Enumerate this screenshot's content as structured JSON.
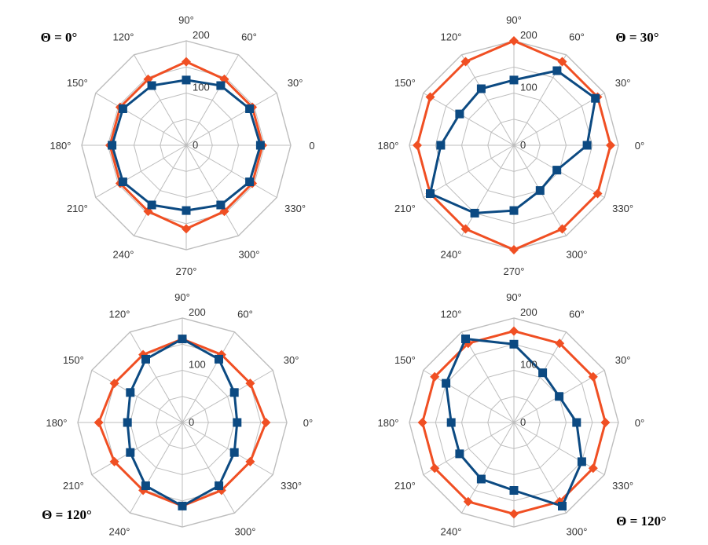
{
  "colors": {
    "outer": "#f04f23",
    "inner": "#0c4a82",
    "grid": "#bdbdbd"
  },
  "chart_data": [
    {
      "type": "radar",
      "title": "Θ = 0°",
      "angle_labels": [
        "90°",
        "120°",
        "150°",
        "180°",
        "210°",
        "240°",
        "270°",
        "300°",
        "330°",
        "0",
        "30°",
        "60°"
      ],
      "radial_labels": [
        "0",
        "100",
        "200"
      ],
      "rlim": [
        0,
        200
      ],
      "series": [
        {
          "marker": "diamond",
          "values": [
            160,
            146,
            146,
            146,
            146,
            146,
            160,
            146,
            146,
            146,
            146,
            146
          ]
        },
        {
          "marker": "square",
          "values": [
            125,
            132,
            140,
            142,
            140,
            132,
            125,
            132,
            140,
            142,
            140,
            132
          ]
        }
      ]
    },
    {
      "type": "radar",
      "title": "Θ = 30°",
      "angle_labels": [
        "90°",
        "120°",
        "150°",
        "180°",
        "210°",
        "240°",
        "270°",
        "300°",
        "330°",
        "0°",
        "30°",
        "60°"
      ],
      "radial_labels": [
        "0",
        "100",
        "200"
      ],
      "rlim": [
        0,
        200
      ],
      "series": [
        {
          "marker": "diamond",
          "values": [
            200,
            185,
            185,
            185,
            185,
            185,
            200,
            185,
            185,
            185,
            185,
            185
          ]
        },
        {
          "marker": "square",
          "values": [
            125,
            125,
            120,
            140,
            185,
            150,
            125,
            100,
            95,
            140,
            180,
            165
          ]
        }
      ]
    },
    {
      "type": "radar",
      "title": "Θ = 120°",
      "angle_labels": [
        "90°",
        "120°",
        "150°",
        "180°",
        "210°",
        "240°",
        "270°",
        "300°",
        "330°",
        "0°",
        "30°",
        "60°"
      ],
      "radial_labels": [
        "0",
        "100",
        "200"
      ],
      "rlim": [
        0,
        200
      ],
      "series": [
        {
          "marker": "diamond",
          "values": [
            160,
            150,
            150,
            160,
            150,
            150,
            160,
            150,
            150,
            160,
            150,
            150
          ]
        },
        {
          "marker": "square",
          "values": [
            160,
            140,
            115,
            105,
            115,
            140,
            160,
            140,
            115,
            105,
            115,
            140
          ]
        }
      ]
    },
    {
      "type": "radar",
      "title": "Θ = 120°",
      "angle_labels": [
        "90°",
        "120°",
        "150°",
        "180°",
        "210°",
        "240°",
        "270°",
        "300°",
        "330°",
        "0°",
        "30°",
        "60°"
      ],
      "radial_labels": [
        "0",
        "100",
        "200"
      ],
      "rlim": [
        0,
        200
      ],
      "series": [
        {
          "marker": "diamond",
          "values": [
            175,
            175,
            175,
            175,
            175,
            175,
            175,
            175,
            175,
            175,
            175,
            175
          ]
        },
        {
          "marker": "square",
          "values": [
            150,
            185,
            150,
            120,
            120,
            125,
            130,
            185,
            150,
            120,
            100,
            110
          ]
        }
      ]
    }
  ]
}
